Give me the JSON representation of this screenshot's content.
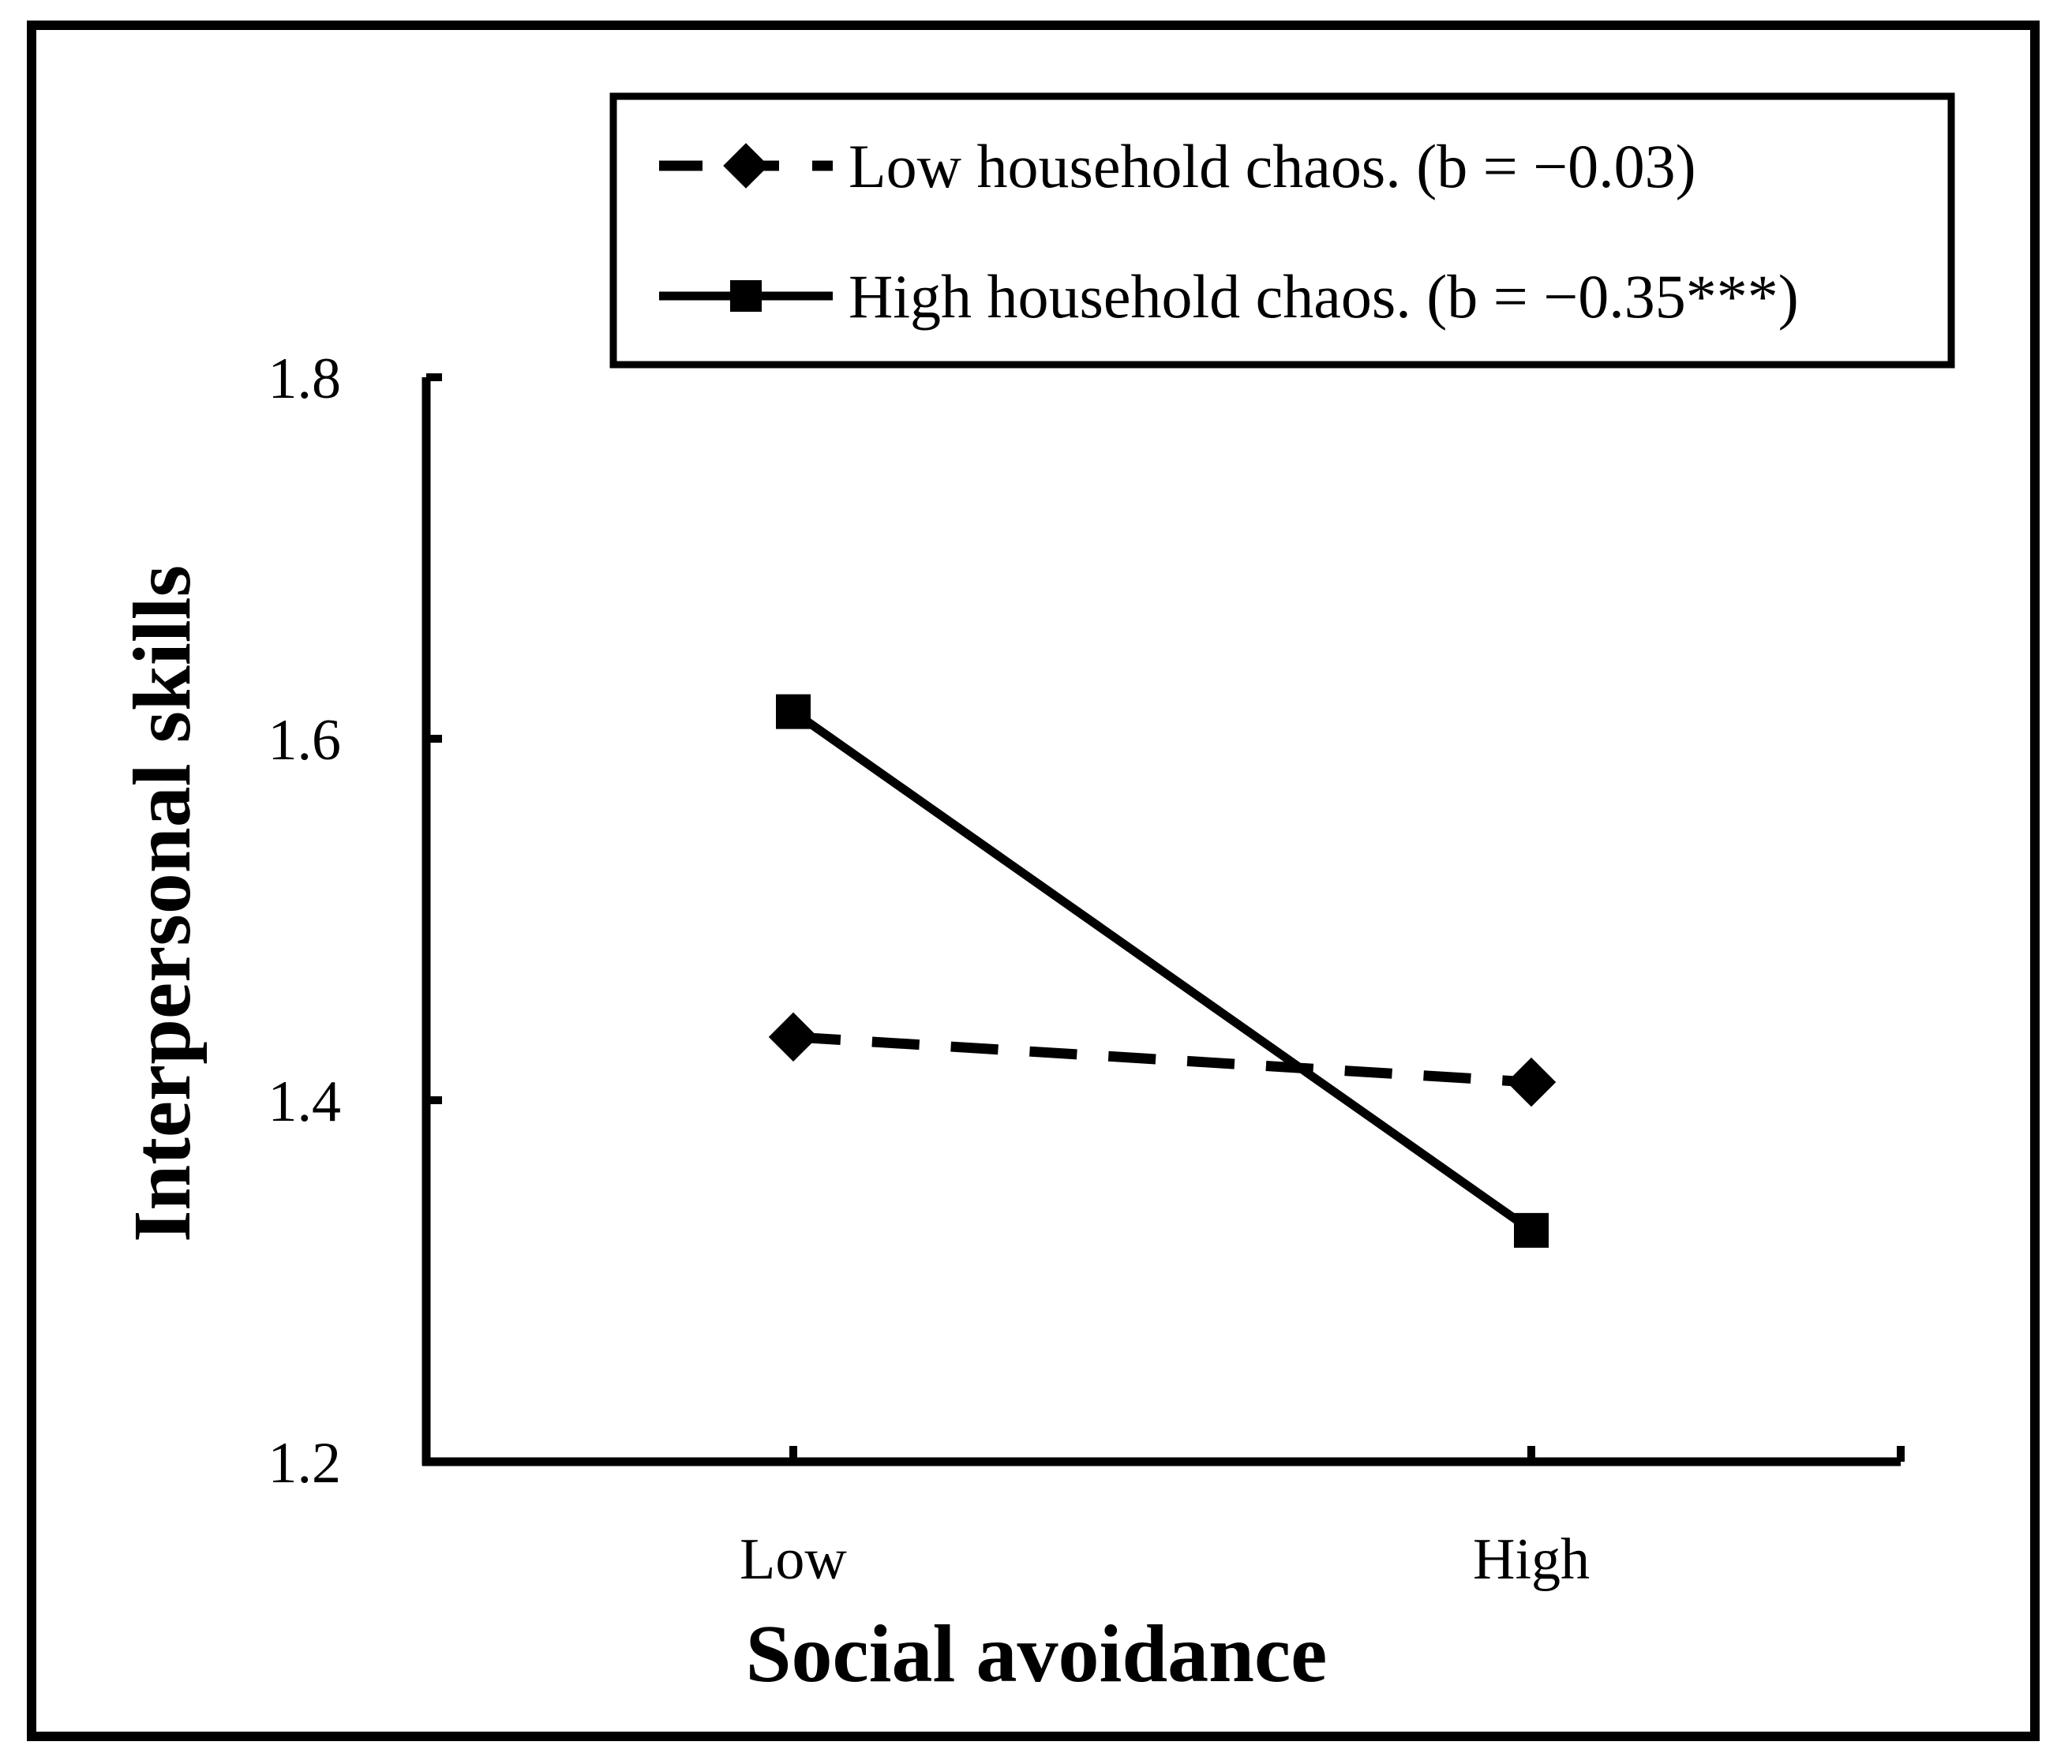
{
  "chart_data": {
    "type": "line",
    "title": "",
    "xlabel": "Social avoidance",
    "ylabel": "Interpersonal skills",
    "categories": [
      "Low",
      "High"
    ],
    "ylim": [
      1.2,
      1.8
    ],
    "yticks": [
      "1.2",
      "1.4",
      "1.6",
      "1.8"
    ],
    "grid": false,
    "legend_position": "top-right",
    "series": [
      {
        "name": "Low household chaos. (b = −0.03)",
        "values": [
          1.435,
          1.41
        ],
        "line_style": "dashed",
        "marker": "diamond",
        "color": "#000000"
      },
      {
        "name": "High household chaos. (b = −0.35***)",
        "values": [
          1.615,
          1.328
        ],
        "line_style": "solid",
        "marker": "square",
        "color": "#000000"
      }
    ]
  }
}
